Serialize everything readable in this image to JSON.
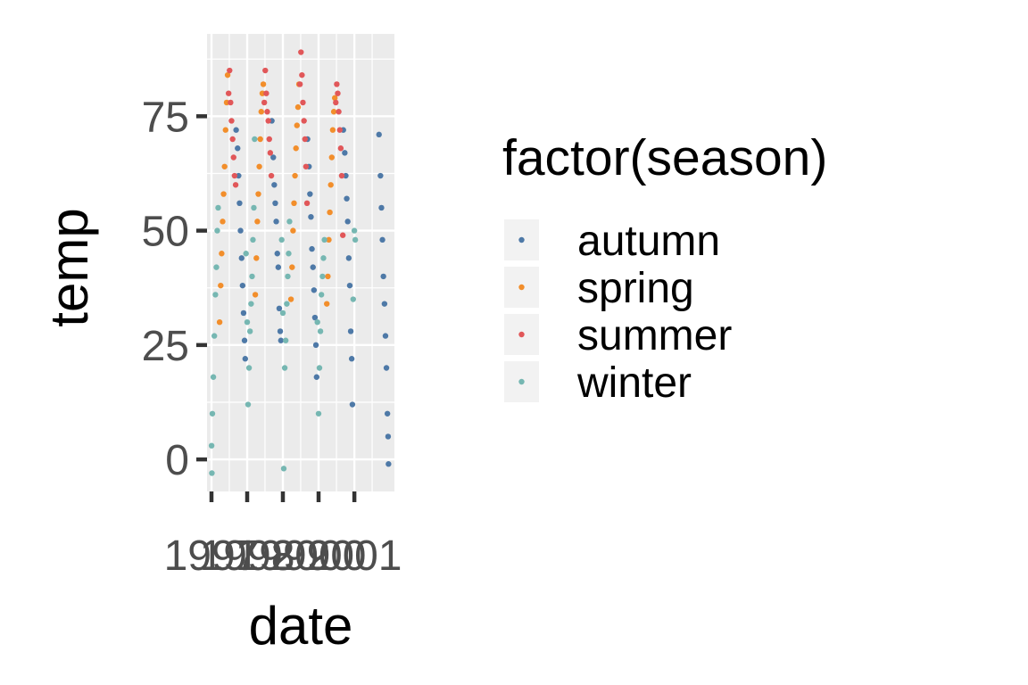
{
  "chart_data": {
    "type": "scatter",
    "title": "",
    "xlabel": "date",
    "ylabel": "temp",
    "xlim": [
      "1997-01-01",
      "2001-12-31"
    ],
    "ylim": [
      -7,
      93
    ],
    "x_ticks": [
      "1997",
      "1998",
      "1999",
      "2000",
      "2001"
    ],
    "y_ticks": [
      0,
      25,
      50,
      75
    ],
    "grid": true,
    "legend": {
      "title": "factor(season)",
      "placement": "right",
      "entries": [
        "autumn",
        "spring",
        "summer",
        "winter"
      ]
    },
    "series": [
      {
        "name": "autumn",
        "color": "#4e79a7",
        "points": [
          [
            "1997-09-10",
            72
          ],
          [
            "1997-09-25",
            68
          ],
          [
            "1997-10-05",
            62
          ],
          [
            "1997-10-15",
            56
          ],
          [
            "1997-10-25",
            50
          ],
          [
            "1997-11-05",
            44
          ],
          [
            "1997-11-15",
            38
          ],
          [
            "1997-11-25",
            32
          ],
          [
            "1997-12-05",
            26
          ],
          [
            "1997-12-12",
            22
          ],
          [
            "1998-09-10",
            74
          ],
          [
            "1998-09-25",
            66
          ],
          [
            "1998-10-05",
            60
          ],
          [
            "1998-10-15",
            56
          ],
          [
            "1998-10-25",
            52
          ],
          [
            "1998-11-05",
            45
          ],
          [
            "1998-11-15",
            42
          ],
          [
            "1998-11-25",
            33
          ],
          [
            "1998-12-05",
            28
          ],
          [
            "1998-12-12",
            26
          ],
          [
            "1999-09-10",
            70
          ],
          [
            "1999-09-25",
            64
          ],
          [
            "1999-10-05",
            58
          ],
          [
            "1999-10-15",
            53
          ],
          [
            "1999-10-25",
            46
          ],
          [
            "1999-11-05",
            42
          ],
          [
            "1999-11-15",
            37
          ],
          [
            "1999-11-25",
            31
          ],
          [
            "1999-12-05",
            25
          ],
          [
            "1999-12-12",
            18
          ],
          [
            "2000-09-10",
            72
          ],
          [
            "2000-09-25",
            67
          ],
          [
            "2000-10-05",
            62
          ],
          [
            "2000-10-15",
            57
          ],
          [
            "2000-10-25",
            52
          ],
          [
            "2000-11-05",
            44
          ],
          [
            "2000-11-15",
            38
          ],
          [
            "2000-11-25",
            28
          ],
          [
            "2000-12-05",
            22
          ],
          [
            "2000-12-12",
            12
          ],
          [
            "2001-09-10",
            71
          ],
          [
            "2001-09-25",
            62
          ],
          [
            "2001-10-05",
            55
          ],
          [
            "2001-10-15",
            48
          ],
          [
            "2001-10-25",
            40
          ],
          [
            "2001-11-05",
            34
          ],
          [
            "2001-11-15",
            27
          ],
          [
            "2001-11-25",
            20
          ],
          [
            "2001-12-05",
            10
          ],
          [
            "2001-12-12",
            5
          ],
          [
            "2001-12-16",
            -1
          ]
        ]
      },
      {
        "name": "spring",
        "color": "#f28e2b",
        "points": [
          [
            "1997-03-25",
            30
          ],
          [
            "1997-04-05",
            38
          ],
          [
            "1997-04-15",
            45
          ],
          [
            "1997-04-25",
            52
          ],
          [
            "1997-05-05",
            58
          ],
          [
            "1997-05-15",
            64
          ],
          [
            "1997-05-25",
            72
          ],
          [
            "1997-06-05",
            78
          ],
          [
            "1997-06-15",
            84
          ],
          [
            "1998-03-25",
            36
          ],
          [
            "1998-04-05",
            44
          ],
          [
            "1998-04-15",
            52
          ],
          [
            "1998-04-25",
            58
          ],
          [
            "1998-05-05",
            64
          ],
          [
            "1998-05-15",
            70
          ],
          [
            "1998-05-25",
            76
          ],
          [
            "1998-06-05",
            80
          ],
          [
            "1998-06-15",
            82
          ],
          [
            "1999-03-25",
            35
          ],
          [
            "1999-04-05",
            42
          ],
          [
            "1999-04-15",
            50
          ],
          [
            "1999-04-25",
            56
          ],
          [
            "1999-05-05",
            62
          ],
          [
            "1999-05-15",
            68
          ],
          [
            "1999-05-25",
            73
          ],
          [
            "1999-06-05",
            77
          ],
          [
            "1999-06-15",
            82
          ],
          [
            "2000-03-25",
            34
          ],
          [
            "2000-04-05",
            40
          ],
          [
            "2000-04-15",
            48
          ],
          [
            "2000-04-25",
            54
          ],
          [
            "2000-05-05",
            60
          ],
          [
            "2000-05-15",
            66
          ],
          [
            "2000-05-25",
            72
          ],
          [
            "2000-06-05",
            76
          ],
          [
            "2000-06-15",
            79
          ]
        ]
      },
      {
        "name": "summer",
        "color": "#e15759",
        "points": [
          [
            "1997-06-25",
            80
          ],
          [
            "1997-07-05",
            85
          ],
          [
            "1997-07-15",
            78
          ],
          [
            "1997-07-25",
            74
          ],
          [
            "1997-08-05",
            70
          ],
          [
            "1997-08-15",
            66
          ],
          [
            "1997-08-25",
            62
          ],
          [
            "1997-09-05",
            60
          ],
          [
            "1998-06-25",
            78
          ],
          [
            "1998-07-05",
            85
          ],
          [
            "1998-07-15",
            80
          ],
          [
            "1998-07-25",
            76
          ],
          [
            "1998-08-05",
            74
          ],
          [
            "1998-08-15",
            70
          ],
          [
            "1998-08-25",
            67
          ],
          [
            "1998-09-05",
            62
          ],
          [
            "1999-06-25",
            82
          ],
          [
            "1999-07-05",
            89
          ],
          [
            "1999-07-15",
            84
          ],
          [
            "1999-07-25",
            78
          ],
          [
            "1999-08-05",
            74
          ],
          [
            "1999-08-15",
            70
          ],
          [
            "1999-08-25",
            64
          ],
          [
            "1999-09-05",
            56
          ],
          [
            "2000-06-25",
            78
          ],
          [
            "2000-07-05",
            82
          ],
          [
            "2000-07-15",
            80
          ],
          [
            "2000-07-25",
            76
          ],
          [
            "2000-08-05",
            72
          ],
          [
            "2000-08-15",
            68
          ],
          [
            "2000-08-25",
            62
          ],
          [
            "2000-09-05",
            49
          ]
        ]
      },
      {
        "name": "winter",
        "color": "#76b7b2",
        "points": [
          [
            "1997-01-02",
            3
          ],
          [
            "1997-01-05",
            -3
          ],
          [
            "1997-01-10",
            10
          ],
          [
            "1997-01-20",
            18
          ],
          [
            "1997-01-30",
            27
          ],
          [
            "1997-02-10",
            36
          ],
          [
            "1997-02-20",
            42
          ],
          [
            "1997-03-01",
            50
          ],
          [
            "1997-03-10",
            55
          ],
          [
            "1997-12-20",
            45
          ],
          [
            "1998-01-01",
            30
          ],
          [
            "1998-01-10",
            12
          ],
          [
            "1998-01-20",
            20
          ],
          [
            "1998-01-30",
            28
          ],
          [
            "1998-02-10",
            34
          ],
          [
            "1998-02-20",
            40
          ],
          [
            "1998-03-01",
            48
          ],
          [
            "1998-03-10",
            55
          ],
          [
            "1998-03-18",
            70
          ],
          [
            "1998-12-20",
            48
          ],
          [
            "1999-01-01",
            32
          ],
          [
            "1999-01-10",
            -2
          ],
          [
            "1999-01-20",
            20
          ],
          [
            "1999-01-30",
            26
          ],
          [
            "1999-02-10",
            34
          ],
          [
            "1999-02-20",
            40
          ],
          [
            "1999-03-01",
            45
          ],
          [
            "1999-03-10",
            52
          ],
          [
            "1999-12-20",
            30
          ],
          [
            "2000-01-01",
            10
          ],
          [
            "2000-01-10",
            20
          ],
          [
            "2000-01-20",
            28
          ],
          [
            "2000-01-30",
            36
          ],
          [
            "2000-02-10",
            40
          ],
          [
            "2000-02-20",
            44
          ],
          [
            "2000-03-01",
            48
          ],
          [
            "2000-12-20",
            35
          ],
          [
            "2001-01-01",
            50
          ],
          [
            "2001-01-10",
            48
          ]
        ]
      }
    ]
  }
}
